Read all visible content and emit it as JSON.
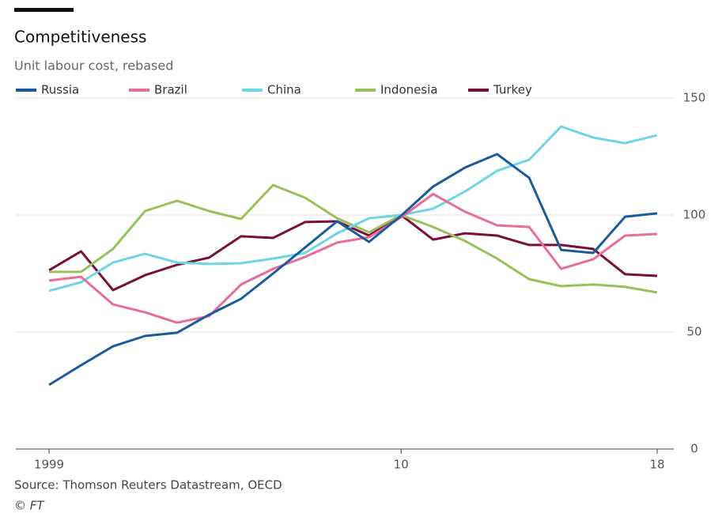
{
  "chart_data": {
    "type": "line",
    "title": "Competitiveness",
    "subtitle": "Unit labour cost, rebased",
    "source": "Source: Thomson Reuters Datastream, OECD",
    "credit": "© FT",
    "x": [
      1999,
      2000,
      2001,
      2002,
      2003,
      2004,
      2005,
      2006,
      2007,
      2008,
      2009,
      2010,
      2011,
      2012,
      2013,
      2014,
      2015,
      2016,
      2017,
      2018
    ],
    "series": [
      {
        "name": "Russia",
        "color": "#1a5b9c",
        "values": [
          27.4,
          35.8,
          43.9,
          48.3,
          49.7,
          57.4,
          64.2,
          75,
          86.1,
          97.3,
          88.5,
          99.7,
          112.2,
          120.3,
          126,
          115.9,
          85.1,
          83.8,
          99.3,
          100.7
        ]
      },
      {
        "name": "Brazil",
        "color": "#e86c9a",
        "values": [
          72,
          73.6,
          61.8,
          58.4,
          54,
          56.8,
          70.3,
          77,
          82.1,
          88.2,
          90.5,
          99,
          109,
          101.4,
          95.6,
          94.9,
          77,
          81.1,
          91.2,
          91.9
        ]
      },
      {
        "name": "China",
        "color": "#6fd4e4",
        "values": [
          67.6,
          71.3,
          79.7,
          83.4,
          79.7,
          79.1,
          79.4,
          81.4,
          83.8,
          92.2,
          98.6,
          100,
          102.7,
          110.1,
          118.9,
          123.6,
          137.8,
          133.1,
          130.7,
          134.1
        ]
      },
      {
        "name": "Indonesia",
        "color": "#98c05b",
        "values": [
          75.7,
          75.7,
          85.5,
          101.7,
          106.1,
          101.7,
          98.3,
          112.8,
          107.4,
          98.6,
          92.6,
          100,
          94.9,
          88.9,
          81.4,
          72.6,
          69.6,
          70.3,
          69.3,
          66.9
        ]
      },
      {
        "name": "Turkey",
        "color": "#7a0e3c",
        "values": [
          76.4,
          84.5,
          67.9,
          74.3,
          78.7,
          81.8,
          90.9,
          90.2,
          97,
          97.3,
          91.2,
          100,
          89.5,
          92.2,
          91.2,
          87.2,
          87.2,
          85.5,
          74.7,
          74
        ]
      }
    ],
    "xlim": [
      1999,
      2018
    ],
    "xticks": [
      1999,
      {
        "value": 2010,
        "label": "10"
      },
      {
        "value": 2018,
        "label": "18"
      }
    ],
    "ylim": [
      0,
      150
    ],
    "yticks": [
      0,
      50,
      100,
      150
    ],
    "grid": true,
    "legend": "top"
  }
}
